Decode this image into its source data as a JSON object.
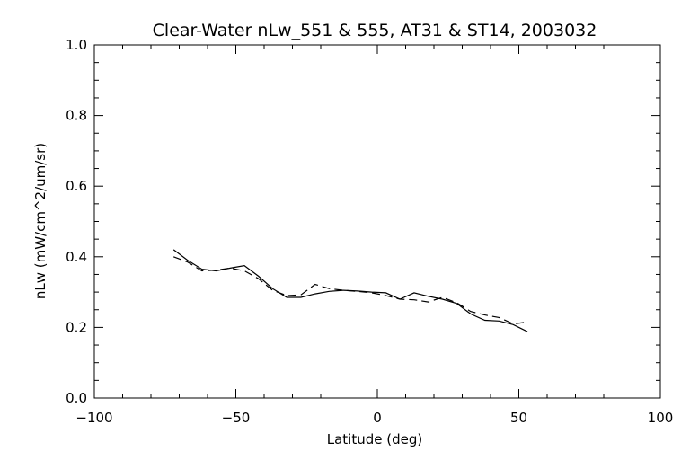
{
  "chart_data": {
    "type": "line",
    "title": "Clear-Water nLw_551 & 555, AT31 & ST14, 2003032",
    "xlabel": "Latitude (deg)",
    "ylabel": "nLw (mW/cm^2/um/sr)",
    "xlim": [
      -100,
      100
    ],
    "ylim": [
      0.0,
      1.0
    ],
    "xticks": [
      -100,
      -50,
      0,
      50,
      100
    ],
    "xtick_labels": [
      "−100",
      "−50",
      "0",
      "50",
      "100"
    ],
    "yticks": [
      0.0,
      0.2,
      0.4,
      0.6,
      0.8,
      1.0
    ],
    "ytick_labels": [
      "0.0",
      "0.2",
      "0.4",
      "0.6",
      "0.8",
      "1.0"
    ],
    "grid": false,
    "series": [
      {
        "style": "solid",
        "color": "#000000",
        "x": [
          -72,
          -67,
          -62,
          -57,
          -52,
          -47,
          -42,
          -37,
          -32,
          -27,
          -22,
          -17,
          -12,
          -7,
          -2,
          3,
          8,
          13,
          18,
          23,
          28,
          33,
          38,
          43,
          48,
          53
        ],
        "y": [
          0.42,
          0.39,
          0.365,
          0.36,
          0.368,
          0.375,
          0.345,
          0.31,
          0.285,
          0.285,
          0.295,
          0.302,
          0.305,
          0.303,
          0.3,
          0.298,
          0.28,
          0.298,
          0.288,
          0.28,
          0.268,
          0.238,
          0.22,
          0.218,
          0.208,
          0.188
        ]
      },
      {
        "style": "dashed",
        "color": "#000000",
        "x": [
          -72,
          -67,
          -62,
          -57,
          -52,
          -47,
          -42,
          -37,
          -32,
          -27,
          -22,
          -17,
          -12,
          -7,
          -2,
          3,
          8,
          13,
          18,
          23,
          28,
          33,
          38,
          43,
          48,
          53
        ],
        "y": [
          0.4,
          0.385,
          0.36,
          0.362,
          0.368,
          0.36,
          0.338,
          0.305,
          0.29,
          0.292,
          0.322,
          0.31,
          0.305,
          0.302,
          0.298,
          0.29,
          0.28,
          0.278,
          0.272,
          0.285,
          0.27,
          0.245,
          0.235,
          0.228,
          0.21,
          0.215
        ]
      }
    ]
  }
}
